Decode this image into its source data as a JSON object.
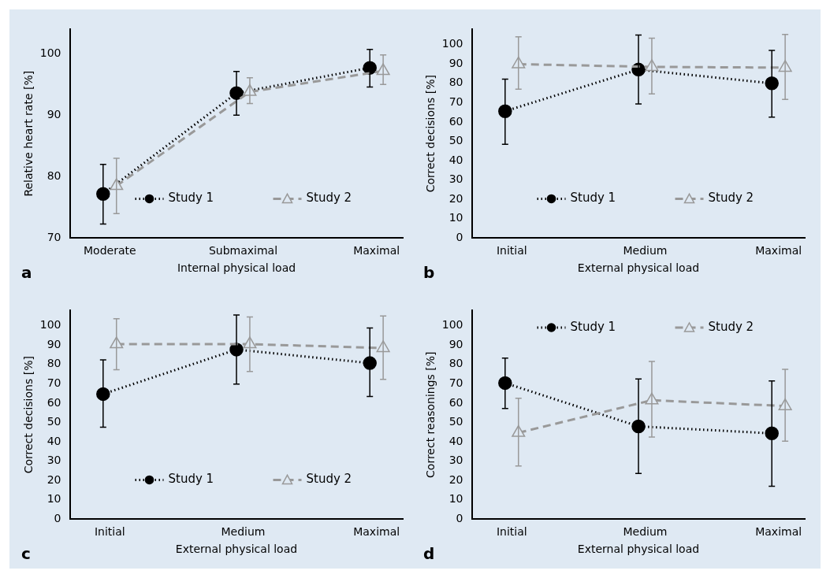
{
  "chart_data": [
    {
      "type": "line",
      "categories": [
        "Moderate",
        "Submaximal",
        "Maximal"
      ],
      "xlabel": "Internal physical load",
      "ylabel": "Relative heart rate [%]",
      "ylim": [
        70,
        104
      ],
      "yticks": [
        70,
        80,
        90,
        100
      ],
      "grid": false,
      "legend": "bottom right",
      "annotations": [
        "a"
      ],
      "series": [
        {
          "name": "Study 1",
          "color": "#000000",
          "marker": "circle",
          "line_style": "dotted",
          "values": [
            77.2,
            93.6,
            97.7
          ],
          "errors": [
            [
              72.3,
              82
            ],
            [
              90,
              97.1
            ],
            [
              94.6,
              100.7
            ]
          ]
        },
        {
          "name": "Study 2",
          "color": "#999999",
          "marker": "triangle",
          "line_style": "dashed",
          "values": [
            78.5,
            93.8,
            97.2
          ],
          "errors": [
            [
              74,
              83
            ],
            [
              91.9,
              96.1
            ],
            [
              95,
              99.8
            ]
          ]
        }
      ]
    },
    {
      "type": "line",
      "categories": [
        "Initial",
        "Medium",
        "Maximal"
      ],
      "xlabel": "External physical load",
      "ylabel": "Correct decisions [%]",
      "ylim": [
        0,
        108
      ],
      "yticks": [
        0,
        10,
        20,
        30,
        40,
        50,
        60,
        70,
        80,
        90,
        100
      ],
      "grid": false,
      "legend": "bottom right",
      "annotations": [
        "b"
      ],
      "series": [
        {
          "name": "Study 1",
          "color": "#000000",
          "marker": "circle",
          "line_style": "dotted",
          "values": [
            65.6,
            87.1,
            80
          ],
          "errors": [
            [
              48.5,
              82.2
            ],
            [
              69.3,
              104.9
            ],
            [
              62.5,
              97
            ]
          ]
        },
        {
          "name": "Study 2",
          "color": "#999999",
          "marker": "triangle",
          "line_style": "dashed",
          "values": [
            89.9,
            88.5,
            88.1
          ],
          "errors": [
            [
              77,
              104
            ],
            [
              74.5,
              103.3
            ],
            [
              71.7,
              105.3
            ]
          ]
        }
      ]
    },
    {
      "type": "line",
      "categories": [
        "Initial",
        "Medium",
        "Maximal"
      ],
      "xlabel": "External physical load",
      "ylabel": "Correct decisions [%]",
      "ylim": [
        0,
        108
      ],
      "yticks": [
        0,
        10,
        20,
        30,
        40,
        50,
        60,
        70,
        80,
        90,
        100
      ],
      "grid": false,
      "legend": "bottom right",
      "annotations": [
        "c"
      ],
      "series": [
        {
          "name": "Study 1",
          "color": "#000000",
          "marker": "circle",
          "line_style": "dotted",
          "values": [
            64.7,
            87.7,
            80.7
          ],
          "errors": [
            [
              47.6,
              82.4
            ],
            [
              69.8,
              105.6
            ],
            [
              63.4,
              98.8
            ]
          ]
        },
        {
          "name": "Study 2",
          "color": "#999999",
          "marker": "triangle",
          "line_style": "dashed",
          "values": [
            90.5,
            90.5,
            88.5
          ],
          "errors": [
            [
              77.3,
              103.6
            ],
            [
              76.4,
              104.5
            ],
            [
              72.3,
              105
            ]
          ]
        }
      ]
    },
    {
      "type": "line",
      "categories": [
        "Initial",
        "Medium",
        "Maximal"
      ],
      "xlabel": "External physical load",
      "ylabel": "Correct reasonings [%]",
      "ylim": [
        0,
        108
      ],
      "yticks": [
        0,
        10,
        20,
        30,
        40,
        50,
        60,
        70,
        80,
        90,
        100
      ],
      "grid": false,
      "legend": "top right",
      "annotations": [
        "d"
      ],
      "series": [
        {
          "name": "Study 1",
          "color": "#000000",
          "marker": "circle",
          "line_style": "dotted",
          "values": [
            70.4,
            48,
            44.4
          ],
          "errors": [
            [
              57.2,
              83.3
            ],
            [
              23.7,
              72.5
            ],
            [
              17,
              71.5
            ]
          ]
        },
        {
          "name": "Study 2",
          "color": "#999999",
          "marker": "triangle",
          "line_style": "dashed",
          "values": [
            44.7,
            61.5,
            58.5
          ],
          "errors": [
            [
              27.5,
              62.5
            ],
            [
              42.5,
              81.5
            ],
            [
              40.3,
              77.5
            ]
          ]
        }
      ]
    }
  ]
}
